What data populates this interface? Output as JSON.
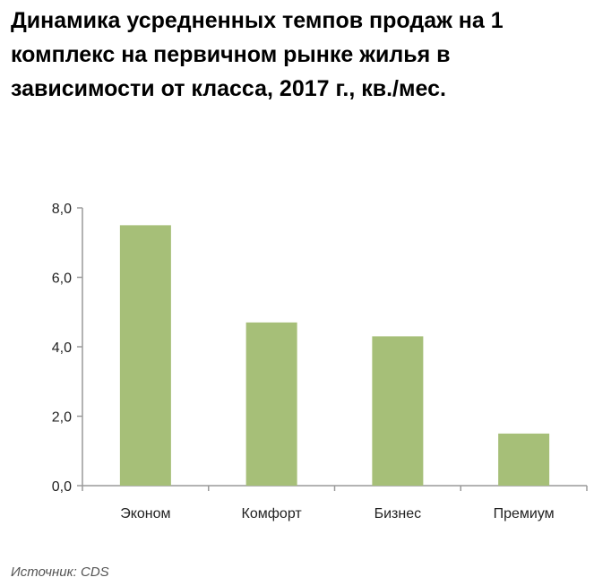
{
  "title": "Динамика усредненных темпов продаж на 1 комплекс на первичном рынке жилья в зависимости от класса, 2017 г., кв./мес.",
  "source": "Источник: CDS",
  "colors": {
    "bar": "#a6bf78",
    "axis": "#9a9a9a"
  },
  "chart_data": {
    "type": "bar",
    "title": "Динамика усредненных темпов продаж на 1 комплекс на первичном рынке жилья в зависимости от класса, 2017 г., кв./мес.",
    "categories": [
      "Эконом",
      "Комфорт",
      "Бизнес",
      "Премиум"
    ],
    "values": [
      7.5,
      4.7,
      4.3,
      1.5
    ],
    "ylim": [
      0,
      8
    ],
    "yticks": [
      0,
      2,
      4,
      6,
      8
    ],
    "ytick_labels": [
      "0,0",
      "2,0",
      "4,0",
      "6,0",
      "8,0"
    ],
    "xlabel": "",
    "ylabel": "",
    "grid": false,
    "legend": "none"
  }
}
